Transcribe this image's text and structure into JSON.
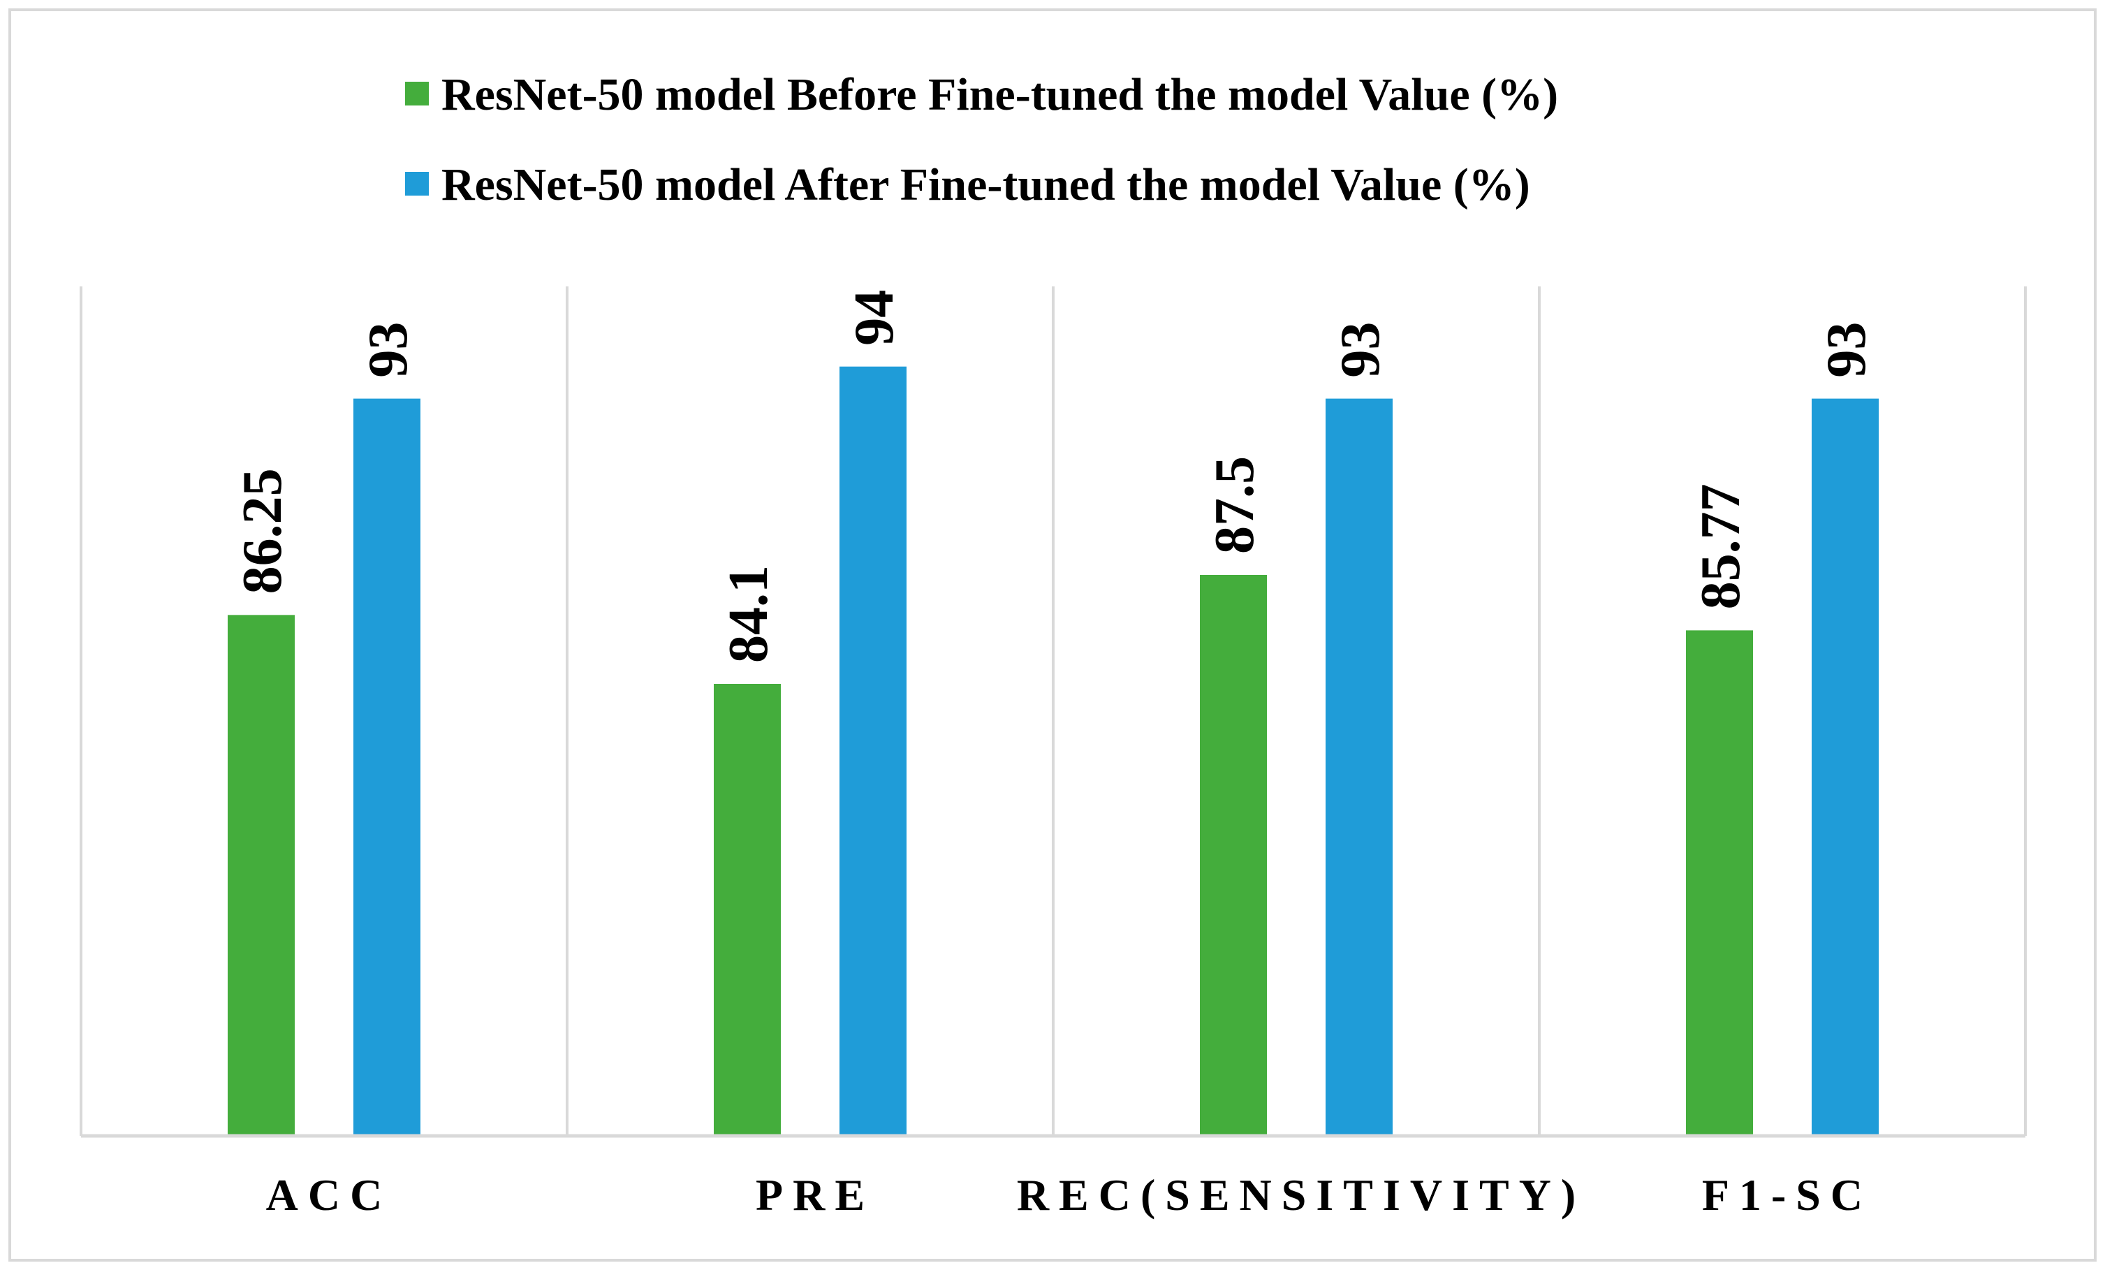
{
  "chart_data": {
    "type": "bar",
    "title": "",
    "xlabel": "",
    "ylabel": "",
    "categories": [
      "ACC",
      "PRE",
      "REC(SENSITIVITY)",
      "F1-SC"
    ],
    "series": [
      {
        "name": "ResNet-50 model Before Fine-tuned the model Value (%)",
        "color": "#44ad3c",
        "values": [
          86.25,
          84.1,
          87.5,
          85.77
        ]
      },
      {
        "name": "ResNet-50 model After Fine-tuned the model Value (%)",
        "color": "#1f9cd8",
        "values": [
          93,
          94,
          93,
          93
        ]
      }
    ],
    "value_labels": [
      [
        "86.25",
        "84.1",
        "87.5",
        "85.77"
      ],
      [
        "93",
        "94",
        "93",
        "93"
      ]
    ],
    "ylim": [
      70,
      96.5
    ],
    "grid": false,
    "category_separators": true,
    "legend_position": "top"
  }
}
